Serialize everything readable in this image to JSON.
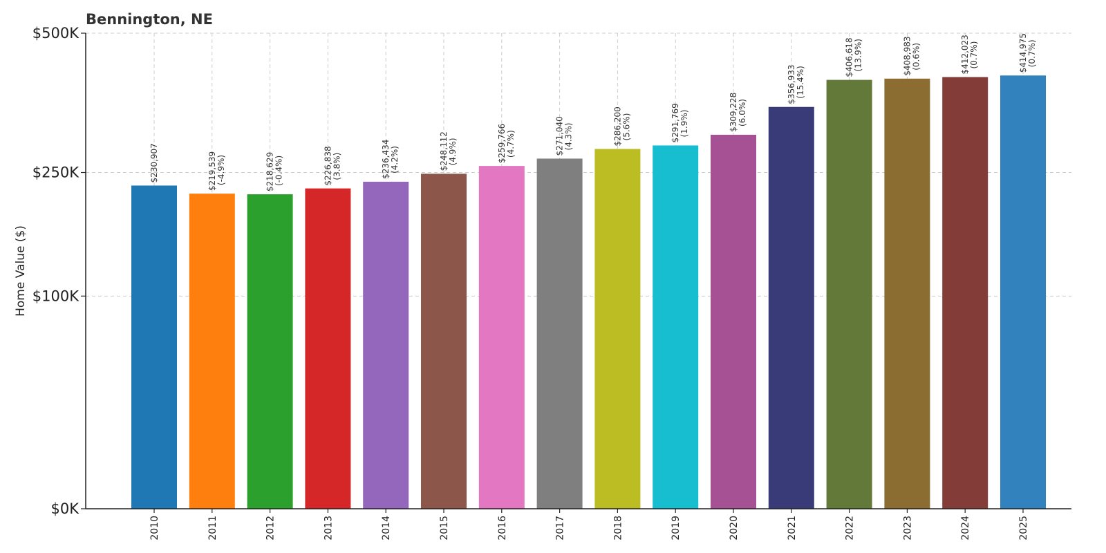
{
  "chart_data": {
    "type": "bar",
    "title": "Bennington, NE",
    "xlabel": "",
    "ylabel": "Home Value ($)",
    "categories": [
      "2010",
      "2011",
      "2012",
      "2013",
      "2014",
      "2015",
      "2016",
      "2017",
      "2018",
      "2019",
      "2020",
      "2021",
      "2022",
      "2023",
      "2024",
      "2025"
    ],
    "values": [
      230907,
      219539,
      218629,
      226838,
      236434,
      248112,
      259766,
      271040,
      286200,
      291769,
      309228,
      356933,
      406618,
      408983,
      412023,
      414975
    ],
    "value_labels": [
      "$230,907",
      "$219,539",
      "$218,629",
      "$226,838",
      "$236,434",
      "$248,112",
      "$259,766",
      "$271,040",
      "$286,200",
      "$291,769",
      "$309,228",
      "$356,933",
      "$406,618",
      "$408,983",
      "$412,023",
      "$414,975"
    ],
    "change_labels": [
      "",
      "(-4.9%)",
      "(-0.4%)",
      "(3.8%)",
      "(4.2%)",
      "(4.9%)",
      "(4.7%)",
      "(4.3%)",
      "(5.6%)",
      "(1.9%)",
      "(6.0%)",
      "(15.4%)",
      "(13.9%)",
      "(0.6%)",
      "(0.7%)",
      "(0.7%)"
    ],
    "colors": [
      "#1f77b4",
      "#ff7f0e",
      "#2ca02c",
      "#d62728",
      "#9467bd",
      "#8c564b",
      "#e377c2",
      "#7f7f7f",
      "#bcbd22",
      "#17becf",
      "#a55194",
      "#393b79",
      "#637939",
      "#8c6d31",
      "#843c39",
      "#3182bd"
    ],
    "y_ticks": [
      {
        "value": 0,
        "label": "$0K"
      },
      {
        "value": 100000,
        "label": "$100K"
      },
      {
        "value": 250000,
        "label": "$250K"
      },
      {
        "value": 500000,
        "label": "$500K"
      }
    ],
    "y_scale": "sqrt",
    "ylim": [
      0,
      500000
    ],
    "grid": true
  }
}
